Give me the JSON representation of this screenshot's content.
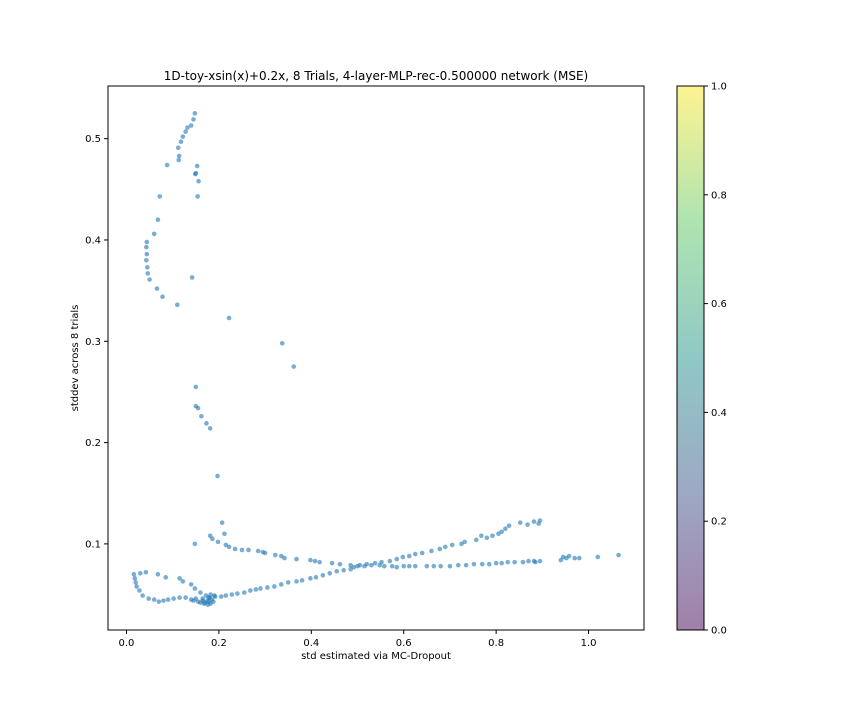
{
  "chart_data": {
    "type": "scatter",
    "title": "1D-toy-xsin(x)+0.2x, 8 Trials, 4-layer-MLP-rec-0.500000 network (MSE)",
    "xlabel": "std estimated via MC-Dropout",
    "ylabel": "stddev across 8 trials",
    "xlim": [
      -0.04,
      1.12
    ],
    "ylim": [
      0.015,
      0.552
    ],
    "xticks": [
      0.0,
      0.2,
      0.4,
      0.6,
      0.8,
      1.0
    ],
    "yticks": [
      0.1,
      0.2,
      0.3,
      0.4,
      0.5
    ],
    "marker_color": "#1f77b4",
    "marker_alpha": 0.6,
    "grid": false,
    "colorbar": {
      "range": [
        0.0,
        1.0
      ],
      "ticks": [
        0.0,
        0.2,
        0.4,
        0.6,
        0.8,
        1.0
      ],
      "colormap": "viridis",
      "alpha": 0.5
    },
    "points": [
      [
        0.148,
        0.525
      ],
      [
        0.145,
        0.519
      ],
      [
        0.14,
        0.513
      ],
      [
        0.132,
        0.511
      ],
      [
        0.128,
        0.507
      ],
      [
        0.122,
        0.502
      ],
      [
        0.118,
        0.497
      ],
      [
        0.112,
        0.491
      ],
      [
        0.114,
        0.483
      ],
      [
        0.113,
        0.479
      ],
      [
        0.088,
        0.474
      ],
      [
        0.153,
        0.473
      ],
      [
        0.15,
        0.466
      ],
      [
        0.149,
        0.465
      ],
      [
        0.156,
        0.458
      ],
      [
        0.154,
        0.443
      ],
      [
        0.072,
        0.443
      ],
      [
        0.068,
        0.42
      ],
      [
        0.06,
        0.406
      ],
      [
        0.044,
        0.398
      ],
      [
        0.043,
        0.393
      ],
      [
        0.044,
        0.386
      ],
      [
        0.043,
        0.38
      ],
      [
        0.045,
        0.373
      ],
      [
        0.046,
        0.367
      ],
      [
        0.05,
        0.361
      ],
      [
        0.142,
        0.363
      ],
      [
        0.066,
        0.352
      ],
      [
        0.078,
        0.344
      ],
      [
        0.11,
        0.336
      ],
      [
        0.222,
        0.323
      ],
      [
        0.337,
        0.298
      ],
      [
        0.362,
        0.275
      ],
      [
        0.15,
        0.255
      ],
      [
        0.15,
        0.236
      ],
      [
        0.155,
        0.234
      ],
      [
        0.162,
        0.226
      ],
      [
        0.173,
        0.219
      ],
      [
        0.181,
        0.214
      ],
      [
        0.197,
        0.167
      ],
      [
        0.207,
        0.121
      ],
      [
        0.212,
        0.11
      ],
      [
        0.181,
        0.108
      ],
      [
        0.186,
        0.105
      ],
      [
        0.198,
        0.102
      ],
      [
        0.148,
        0.1
      ],
      [
        0.215,
        0.099
      ],
      [
        0.222,
        0.097
      ],
      [
        0.235,
        0.095
      ],
      [
        0.25,
        0.094
      ],
      [
        0.264,
        0.094
      ],
      [
        0.285,
        0.093
      ],
      [
        0.295,
        0.092
      ],
      [
        0.3,
        0.091
      ],
      [
        0.322,
        0.089
      ],
      [
        0.335,
        0.088
      ],
      [
        0.342,
        0.086
      ],
      [
        0.368,
        0.085
      ],
      [
        0.398,
        0.084
      ],
      [
        0.408,
        0.083
      ],
      [
        0.418,
        0.082
      ],
      [
        0.445,
        0.081
      ],
      [
        0.462,
        0.08
      ],
      [
        0.485,
        0.079
      ],
      [
        0.5,
        0.078
      ],
      [
        0.515,
        0.078
      ],
      [
        0.53,
        0.079
      ],
      [
        0.548,
        0.079
      ],
      [
        0.558,
        0.078
      ],
      [
        0.575,
        0.078
      ],
      [
        0.585,
        0.077
      ],
      [
        0.6,
        0.078
      ],
      [
        0.612,
        0.078
      ],
      [
        0.625,
        0.078
      ],
      [
        0.65,
        0.078
      ],
      [
        0.665,
        0.078
      ],
      [
        0.68,
        0.078
      ],
      [
        0.7,
        0.078
      ],
      [
        0.718,
        0.079
      ],
      [
        0.735,
        0.079
      ],
      [
        0.752,
        0.08
      ],
      [
        0.77,
        0.08
      ],
      [
        0.785,
        0.08
      ],
      [
        0.8,
        0.081
      ],
      [
        0.812,
        0.081
      ],
      [
        0.825,
        0.082
      ],
      [
        0.84,
        0.082
      ],
      [
        0.858,
        0.082
      ],
      [
        0.87,
        0.083
      ],
      [
        0.882,
        0.083
      ],
      [
        0.895,
        0.083
      ],
      [
        0.885,
        0.082
      ],
      [
        0.94,
        0.084
      ],
      [
        0.945,
        0.087
      ],
      [
        0.952,
        0.086
      ],
      [
        0.958,
        0.088
      ],
      [
        0.97,
        0.086
      ],
      [
        0.98,
        0.086
      ],
      [
        1.02,
        0.087
      ],
      [
        1.065,
        0.089
      ],
      [
        0.895,
        0.123
      ],
      [
        0.892,
        0.12
      ],
      [
        0.882,
        0.122
      ],
      [
        0.868,
        0.119
      ],
      [
        0.852,
        0.121
      ],
      [
        0.828,
        0.118
      ],
      [
        0.82,
        0.115
      ],
      [
        0.812,
        0.112
      ],
      [
        0.805,
        0.11
      ],
      [
        0.792,
        0.108
      ],
      [
        0.78,
        0.106
      ],
      [
        0.768,
        0.108
      ],
      [
        0.757,
        0.104
      ],
      [
        0.732,
        0.102
      ],
      [
        0.725,
        0.1
      ],
      [
        0.705,
        0.099
      ],
      [
        0.69,
        0.097
      ],
      [
        0.678,
        0.095
      ],
      [
        0.66,
        0.093
      ],
      [
        0.64,
        0.091
      ],
      [
        0.625,
        0.09
      ],
      [
        0.612,
        0.088
      ],
      [
        0.598,
        0.087
      ],
      [
        0.585,
        0.085
      ],
      [
        0.57,
        0.083
      ],
      [
        0.552,
        0.082
      ],
      [
        0.538,
        0.081
      ],
      [
        0.52,
        0.08
      ],
      [
        0.505,
        0.079
      ],
      [
        0.492,
        0.077
      ],
      [
        0.485,
        0.075
      ],
      [
        0.47,
        0.074
      ],
      [
        0.455,
        0.073
      ],
      [
        0.44,
        0.071
      ],
      [
        0.425,
        0.069
      ],
      [
        0.41,
        0.067
      ],
      [
        0.398,
        0.066
      ],
      [
        0.38,
        0.064
      ],
      [
        0.368,
        0.063
      ],
      [
        0.35,
        0.062
      ],
      [
        0.335,
        0.06
      ],
      [
        0.32,
        0.058
      ],
      [
        0.305,
        0.057
      ],
      [
        0.29,
        0.056
      ],
      [
        0.28,
        0.055
      ],
      [
        0.268,
        0.054
      ],
      [
        0.255,
        0.052
      ],
      [
        0.24,
        0.051
      ],
      [
        0.228,
        0.05
      ],
      [
        0.215,
        0.049
      ],
      [
        0.205,
        0.048
      ],
      [
        0.192,
        0.048
      ],
      [
        0.178,
        0.047
      ],
      [
        0.165,
        0.046
      ],
      [
        0.15,
        0.046
      ],
      [
        0.14,
        0.045
      ],
      [
        0.128,
        0.047
      ],
      [
        0.115,
        0.047
      ],
      [
        0.102,
        0.046
      ],
      [
        0.09,
        0.045
      ],
      [
        0.08,
        0.044
      ],
      [
        0.07,
        0.043
      ],
      [
        0.06,
        0.045
      ],
      [
        0.048,
        0.046
      ],
      [
        0.035,
        0.049
      ],
      [
        0.028,
        0.054
      ],
      [
        0.022,
        0.058
      ],
      [
        0.02,
        0.062
      ],
      [
        0.018,
        0.066
      ],
      [
        0.016,
        0.07
      ],
      [
        0.03,
        0.071
      ],
      [
        0.042,
        0.072
      ],
      [
        0.068,
        0.07
      ],
      [
        0.085,
        0.067
      ],
      [
        0.115,
        0.066
      ],
      [
        0.122,
        0.063
      ],
      [
        0.14,
        0.06
      ],
      [
        0.148,
        0.056
      ],
      [
        0.16,
        0.052
      ],
      [
        0.172,
        0.049
      ],
      [
        0.18,
        0.047
      ],
      [
        0.185,
        0.045
      ],
      [
        0.178,
        0.043
      ],
      [
        0.17,
        0.042
      ],
      [
        0.16,
        0.042
      ],
      [
        0.182,
        0.041
      ],
      [
        0.188,
        0.043
      ],
      [
        0.175,
        0.044
      ],
      [
        0.165,
        0.044
      ],
      [
        0.145,
        0.044
      ],
      [
        0.155,
        0.043
      ],
      [
        0.168,
        0.041
      ],
      [
        0.176,
        0.04
      ],
      [
        0.19,
        0.049
      ],
      [
        0.182,
        0.05
      ]
    ]
  }
}
